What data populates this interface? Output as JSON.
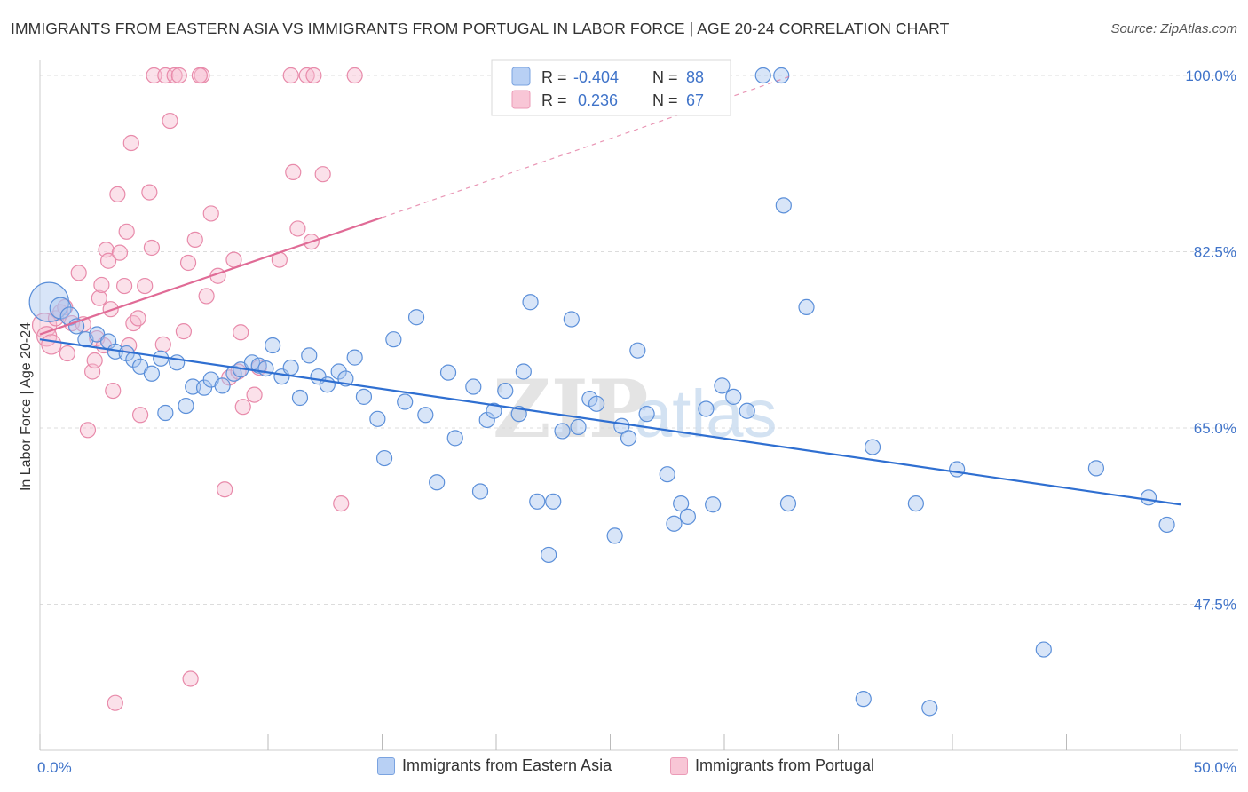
{
  "header": {
    "title": "IMMIGRANTS FROM EASTERN ASIA VS IMMIGRANTS FROM PORTUGAL IN LABOR FORCE | AGE 20-24 CORRELATION CHART",
    "source": "Source: ZipAtlas.com"
  },
  "watermark": {
    "zip": "ZIP",
    "atlas": "atlas"
  },
  "colors": {
    "blue_fill": "#a9c6f0",
    "blue_stroke": "#5b8fd9",
    "blue_line": "#2f6fd1",
    "pink_fill": "#f6bcd0",
    "pink_stroke": "#e88aaa",
    "pink_line": "#e06b96",
    "tick_text": "#3f73c9",
    "grid": "#dcdcdc"
  },
  "legend_top": {
    "row1": {
      "r_label": "R =",
      "r_value": "-0.404",
      "n_label": "N =",
      "n_value": "88"
    },
    "row2": {
      "r_label": "R =",
      "r_value": " 0.236",
      "n_label": "N =",
      "n_value": "67"
    }
  },
  "legend_bottom": {
    "series1": "Immigrants from Eastern Asia",
    "series2": "Immigrants from Portugal"
  },
  "chart_data": {
    "type": "scatter",
    "title": "IMMIGRANTS FROM EASTERN ASIA VS IMMIGRANTS FROM PORTUGAL IN LABOR FORCE | AGE 20-24 CORRELATION CHART",
    "xlabel": "",
    "ylabel": "In Labor Force | Age 20-24",
    "xlim": [
      0,
      50
    ],
    "ylim": [
      33,
      101.5
    ],
    "x_tick_labels": [
      "0.0%",
      "50.0%"
    ],
    "y_ticks": [
      47.5,
      65.0,
      82.5,
      100.0
    ],
    "y_tick_labels": [
      "47.5%",
      "65.0%",
      "82.5%",
      "100.0%"
    ],
    "grid": true,
    "legend": "top-center",
    "series": [
      {
        "name": "Immigrants from Eastern Asia",
        "R": -0.404,
        "N": 88,
        "trend": {
          "x0": 0.0,
          "y0": 73.8,
          "x1": 50.0,
          "y1": 57.4
        },
        "points": [
          [
            0.4,
            77.5,
            2.6
          ],
          [
            0.9,
            76.9,
            1.4
          ],
          [
            1.3,
            76.1,
            1.2
          ],
          [
            1.6,
            75.1,
            1.0
          ],
          [
            2.0,
            73.8,
            1.0
          ],
          [
            2.5,
            74.3,
            1.0
          ],
          [
            3.0,
            73.6,
            1.0
          ],
          [
            3.3,
            72.6,
            1.0
          ],
          [
            3.8,
            72.4,
            1.0
          ],
          [
            4.1,
            71.8,
            1.0
          ],
          [
            4.4,
            71.1,
            1.0
          ],
          [
            4.9,
            70.4,
            1.0
          ],
          [
            5.3,
            71.9,
            1.0
          ],
          [
            5.5,
            66.5,
            1.0
          ],
          [
            6.0,
            71.5,
            1.0
          ],
          [
            6.4,
            67.2,
            1.0
          ],
          [
            6.7,
            69.1,
            1.0
          ],
          [
            7.2,
            69.0,
            1.0
          ],
          [
            7.5,
            69.8,
            1.0
          ],
          [
            8.0,
            69.2,
            1.0
          ],
          [
            8.5,
            70.4,
            1.0
          ],
          [
            8.8,
            70.8,
            1.0
          ],
          [
            9.3,
            71.5,
            1.0
          ],
          [
            9.6,
            71.2,
            1.0
          ],
          [
            9.9,
            70.9,
            1.0
          ],
          [
            10.2,
            73.2,
            1.0
          ],
          [
            10.6,
            70.1,
            1.0
          ],
          [
            11.0,
            71.0,
            1.0
          ],
          [
            11.4,
            68.0,
            1.0
          ],
          [
            11.8,
            72.2,
            1.0
          ],
          [
            12.2,
            70.1,
            1.0
          ],
          [
            12.6,
            69.3,
            1.0
          ],
          [
            13.1,
            70.6,
            1.0
          ],
          [
            13.4,
            69.9,
            1.0
          ],
          [
            13.8,
            72.0,
            1.0
          ],
          [
            14.2,
            68.1,
            1.0
          ],
          [
            14.8,
            65.9,
            1.0
          ],
          [
            15.1,
            62.0,
            1.0
          ],
          [
            15.5,
            73.8,
            1.0
          ],
          [
            16.0,
            67.6,
            1.0
          ],
          [
            16.5,
            76.0,
            1.0
          ],
          [
            16.9,
            66.3,
            1.0
          ],
          [
            17.4,
            59.6,
            1.0
          ],
          [
            17.9,
            70.5,
            1.0
          ],
          [
            18.2,
            64.0,
            1.0
          ],
          [
            19.0,
            69.1,
            1.0
          ],
          [
            19.3,
            58.7,
            1.0
          ],
          [
            19.6,
            65.8,
            1.0
          ],
          [
            19.9,
            66.7,
            1.0
          ],
          [
            20.4,
            68.7,
            1.0
          ],
          [
            21.0,
            66.4,
            1.0
          ],
          [
            21.2,
            70.6,
            1.0
          ],
          [
            21.5,
            77.5,
            1.0
          ],
          [
            21.8,
            57.7,
            1.0
          ],
          [
            22.3,
            52.4,
            1.0
          ],
          [
            22.5,
            57.7,
            1.0
          ],
          [
            22.9,
            64.7,
            1.0
          ],
          [
            23.3,
            75.8,
            1.0
          ],
          [
            23.6,
            65.1,
            1.0
          ],
          [
            24.1,
            67.9,
            1.0
          ],
          [
            24.4,
            67.4,
            1.0
          ],
          [
            25.2,
            54.3,
            1.0
          ],
          [
            25.5,
            65.2,
            1.0
          ],
          [
            25.8,
            64.0,
            1.0
          ],
          [
            26.2,
            72.7,
            1.0
          ],
          [
            26.6,
            66.4,
            1.0
          ],
          [
            27.5,
            60.4,
            1.0
          ],
          [
            27.8,
            55.5,
            1.0
          ],
          [
            28.1,
            57.5,
            1.0
          ],
          [
            28.4,
            56.2,
            1.0
          ],
          [
            29.2,
            66.9,
            1.0
          ],
          [
            29.5,
            57.4,
            1.0
          ],
          [
            29.9,
            69.2,
            1.0
          ],
          [
            30.4,
            68.1,
            1.0
          ],
          [
            31.0,
            66.7,
            1.0
          ],
          [
            31.7,
            100.0,
            1.0
          ],
          [
            32.5,
            100.0,
            1.0
          ],
          [
            32.6,
            87.1,
            1.0
          ],
          [
            32.8,
            57.5,
            1.0
          ],
          [
            33.6,
            77.0,
            1.0
          ],
          [
            36.1,
            38.1,
            1.0
          ],
          [
            36.5,
            63.1,
            1.0
          ],
          [
            38.4,
            57.5,
            1.0
          ],
          [
            39.0,
            37.2,
            1.0
          ],
          [
            40.2,
            60.9,
            1.0
          ],
          [
            44.0,
            43.0,
            1.0
          ],
          [
            46.3,
            61.0,
            1.0
          ],
          [
            48.6,
            58.1,
            1.0
          ],
          [
            49.4,
            55.4,
            1.0
          ]
        ]
      },
      {
        "name": "Immigrants from Portugal",
        "R": 0.236,
        "N": 67,
        "trend_solid": {
          "x0": 0.0,
          "y0": 74.3,
          "x1": 15.0,
          "y1": 85.9
        },
        "trend_dashed": {
          "x0": 15.0,
          "y0": 85.9,
          "x1": 33.0,
          "y1": 100.0
        },
        "points": [
          [
            0.2,
            75.2,
            1.6
          ],
          [
            0.3,
            74.1,
            1.3
          ],
          [
            0.5,
            73.3,
            1.3
          ],
          [
            0.7,
            75.9,
            1.0
          ],
          [
            0.9,
            76.5,
            1.0
          ],
          [
            1.2,
            72.4,
            1.0
          ],
          [
            1.4,
            75.4,
            1.0
          ],
          [
            1.7,
            80.4,
            1.0
          ],
          [
            1.9,
            75.3,
            1.0
          ],
          [
            2.1,
            64.8,
            1.0
          ],
          [
            2.3,
            70.6,
            1.0
          ],
          [
            2.4,
            71.7,
            1.0
          ],
          [
            2.5,
            73.9,
            1.0
          ],
          [
            2.6,
            77.9,
            1.0
          ],
          [
            2.7,
            79.2,
            1.0
          ],
          [
            2.8,
            73.2,
            1.0
          ],
          [
            2.9,
            82.7,
            1.0
          ],
          [
            3.0,
            81.6,
            1.0
          ],
          [
            3.1,
            76.8,
            1.0
          ],
          [
            3.2,
            68.7,
            1.0
          ],
          [
            3.3,
            37.7,
            1.0
          ],
          [
            3.4,
            88.2,
            1.0
          ],
          [
            3.5,
            82.4,
            1.0
          ],
          [
            3.7,
            79.1,
            1.0
          ],
          [
            3.8,
            84.5,
            1.0
          ],
          [
            3.9,
            73.2,
            1.0
          ],
          [
            4.0,
            93.3,
            1.0
          ],
          [
            4.1,
            75.4,
            1.0
          ],
          [
            4.3,
            75.9,
            1.0
          ],
          [
            4.4,
            66.3,
            1.0
          ],
          [
            4.6,
            79.1,
            1.0
          ],
          [
            4.8,
            88.4,
            1.0
          ],
          [
            4.9,
            82.9,
            1.0
          ],
          [
            5.0,
            100.0,
            1.0
          ],
          [
            5.4,
            73.3,
            1.0
          ],
          [
            5.5,
            100.0,
            1.0
          ],
          [
            5.7,
            95.5,
            1.0
          ],
          [
            5.9,
            100.0,
            1.0
          ],
          [
            6.1,
            100.0,
            1.0
          ],
          [
            6.3,
            74.6,
            1.0
          ],
          [
            6.5,
            81.4,
            1.0
          ],
          [
            6.6,
            40.1,
            1.0
          ],
          [
            6.8,
            83.7,
            1.0
          ],
          [
            7.1,
            100.0,
            1.0
          ],
          [
            7.3,
            78.1,
            1.0
          ],
          [
            7.5,
            86.3,
            1.0
          ],
          [
            7.8,
            80.1,
            1.0
          ],
          [
            8.1,
            58.9,
            1.0
          ],
          [
            8.3,
            70.0,
            1.0
          ],
          [
            8.5,
            81.7,
            1.0
          ],
          [
            8.7,
            70.6,
            1.0
          ],
          [
            8.8,
            74.5,
            1.0
          ],
          [
            8.9,
            67.1,
            1.0
          ],
          [
            9.4,
            68.3,
            1.0
          ],
          [
            9.6,
            71.0,
            1.0
          ],
          [
            10.5,
            81.7,
            1.0
          ],
          [
            11.0,
            100.0,
            1.0
          ],
          [
            11.1,
            90.4,
            1.0
          ],
          [
            11.3,
            84.8,
            1.0
          ],
          [
            11.7,
            100.0,
            1.0
          ],
          [
            11.9,
            83.5,
            1.0
          ],
          [
            12.0,
            100.0,
            1.0
          ],
          [
            12.4,
            90.2,
            1.0
          ],
          [
            13.2,
            57.5,
            1.0
          ],
          [
            13.8,
            100.0,
            1.0
          ],
          [
            7.0,
            100.0,
            1.0
          ],
          [
            1.1,
            77.0,
            1.0
          ]
        ]
      }
    ]
  }
}
